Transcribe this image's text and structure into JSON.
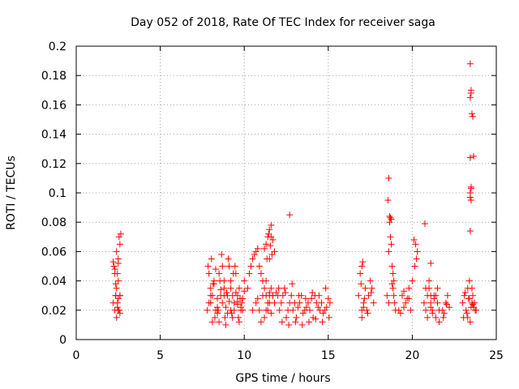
{
  "chart_data": {
    "type": "scatter",
    "title": "Day 052 of 2018, Rate Of TEC Index for receiver saga",
    "xlabel": "GPS time / hours",
    "ylabel": "ROTI / TECUs",
    "xlim": [
      0,
      25
    ],
    "ylim": [
      0,
      0.2
    ],
    "xticks": [
      "0",
      "5",
      "10",
      "15",
      "20",
      "25"
    ],
    "yticks": [
      "0",
      "0.02",
      "0.04",
      "0.06",
      "0.08",
      "0.1",
      "0.12",
      "0.14",
      "0.16",
      "0.18",
      "0.2"
    ],
    "grid": true,
    "marker": "+",
    "color": "#ff0000",
    "series": [
      {
        "name": "ROTI",
        "x": [
          2.2,
          2.25,
          2.3,
          2.3,
          2.35,
          2.4,
          2.4,
          2.45,
          2.5,
          2.5,
          2.55,
          2.6,
          2.6,
          2.65,
          2.3,
          2.4,
          2.5,
          2.35,
          2.45,
          2.55,
          2.5,
          2.6,
          2.2,
          2.35,
          2.45,
          2.5,
          2.6,
          7.8,
          7.9,
          8.0,
          8.1,
          8.2,
          8.3,
          8.4,
          8.5,
          8.6,
          8.7,
          8.8,
          8.9,
          9.0,
          9.1,
          9.2,
          9.3,
          9.4,
          9.5,
          9.6,
          9.7,
          9.8,
          9.9,
          10.0,
          7.85,
          8.05,
          8.25,
          8.45,
          8.65,
          8.85,
          9.05,
          9.25,
          9.45,
          9.65,
          9.85,
          8.0,
          8.2,
          8.4,
          8.6,
          8.8,
          9.0,
          9.2,
          9.4,
          9.6,
          9.8,
          10.0,
          8.1,
          8.5,
          8.9,
          9.3,
          9.7,
          7.9,
          8.3,
          8.7,
          9.1,
          9.5,
          9.9,
          8.15,
          8.55,
          8.95,
          9.35,
          9.75,
          8.0,
          8.4,
          8.8,
          9.2,
          9.6,
          10.2,
          10.3,
          10.4,
          10.5,
          10.6,
          10.7,
          10.8,
          10.9,
          11.0,
          11.1,
          11.2,
          11.3,
          11.4,
          11.5,
          11.6,
          11.7,
          11.8,
          11.9,
          10.5,
          10.7,
          10.9,
          11.1,
          11.3,
          11.5,
          11.7,
          11.2,
          11.4,
          11.6,
          11.0,
          10.8,
          11.3,
          11.5,
          11.3,
          11.4,
          11.5,
          11.6,
          11.7,
          11.8,
          11.2,
          11.5,
          11.6,
          11.45,
          11.55,
          11.35,
          11.65,
          12.0,
          12.2,
          12.4,
          12.6,
          12.8,
          13.0,
          13.2,
          13.4,
          13.6,
          13.8,
          14.0,
          14.2,
          14.4,
          14.6,
          14.8,
          15.0,
          12.1,
          12.3,
          12.5,
          12.7,
          12.9,
          13.1,
          13.3,
          13.5,
          13.7,
          13.9,
          14.1,
          14.3,
          14.5,
          14.7,
          14.9,
          15.1,
          12.05,
          12.45,
          12.85,
          13.25,
          13.65,
          14.05,
          14.45,
          14.85,
          12.25,
          12.65,
          13.05,
          13.45,
          13.85,
          14.25,
          14.65,
          15.05,
          12.7,
          16.8,
          16.9,
          17.0,
          17.0,
          17.1,
          17.2,
          17.3,
          17.4,
          17.5,
          17.6,
          17.7,
          16.95,
          17.05,
          17.15,
          17.35,
          17.55,
          17.0,
          17.1,
          18.5,
          18.55,
          18.6,
          18.6,
          18.65,
          18.7,
          18.75,
          18.8,
          18.85,
          18.9,
          18.95,
          19.0,
          18.6,
          18.7,
          18.8,
          18.9,
          18.65,
          18.85,
          18.75,
          19.2,
          19.4,
          19.6,
          19.8,
          20.0,
          19.3,
          19.5,
          19.7,
          19.9,
          19.5,
          19.8,
          20.1,
          20.2,
          20.3,
          20.25,
          20.15,
          20.7,
          20.8,
          20.9,
          21.0,
          21.1,
          21.2,
          21.3,
          21.4,
          21.5,
          21.6,
          20.8,
          21.0,
          21.2,
          21.4,
          21.6,
          20.9,
          21.1,
          21.3,
          21.5,
          21.1,
          21.8,
          22.0,
          22.2,
          21.9,
          22.1,
          21.85,
          22.05,
          23.0,
          23.1,
          23.2,
          23.3,
          23.4,
          23.5,
          23.6,
          23.7,
          23.8,
          23.05,
          23.25,
          23.45,
          23.65,
          23.15,
          23.35,
          23.55,
          23.75,
          23.3,
          23.6,
          23.45,
          23.5,
          23.5,
          23.45,
          23.55,
          23.6,
          23.65,
          23.45,
          23.5,
          23.45,
          23.45,
          23.5,
          23.5,
          23.45,
          23.55,
          23.4,
          20.75,
          21.1
        ],
        "y": [
          0.025,
          0.05,
          0.045,
          0.02,
          0.03,
          0.035,
          0.015,
          0.025,
          0.055,
          0.04,
          0.02,
          0.03,
          0.065,
          0.072,
          0.048,
          0.06,
          0.02,
          0.03,
          0.045,
          0.07,
          0.028,
          0.018,
          0.053,
          0.038,
          0.022,
          0.052,
          0.03,
          0.02,
          0.025,
          0.035,
          0.03,
          0.04,
          0.02,
          0.028,
          0.045,
          0.03,
          0.025,
          0.035,
          0.022,
          0.03,
          0.026,
          0.04,
          0.03,
          0.02,
          0.032,
          0.026,
          0.035,
          0.022,
          0.028,
          0.033,
          0.05,
          0.055,
          0.015,
          0.02,
          0.058,
          0.015,
          0.055,
          0.018,
          0.05,
          0.015,
          0.025,
          0.03,
          0.038,
          0.022,
          0.034,
          0.03,
          0.018,
          0.035,
          0.025,
          0.03,
          0.02,
          0.04,
          0.012,
          0.012,
          0.01,
          0.015,
          0.012,
          0.045,
          0.048,
          0.05,
          0.05,
          0.045,
          0.02,
          0.038,
          0.04,
          0.032,
          0.045,
          0.028,
          0.025,
          0.018,
          0.04,
          0.02,
          0.024,
          0.035,
          0.045,
          0.05,
          0.055,
          0.058,
          0.06,
          0.062,
          0.05,
          0.045,
          0.04,
          0.035,
          0.03,
          0.025,
          0.03,
          0.035,
          0.03,
          0.025,
          0.032,
          0.02,
          0.025,
          0.02,
          0.03,
          0.02,
          0.025,
          0.03,
          0.015,
          0.02,
          0.018,
          0.012,
          0.028,
          0.04,
          0.032,
          0.065,
          0.07,
          0.075,
          0.078,
          0.068,
          0.06,
          0.062,
          0.055,
          0.07,
          0.072,
          0.064,
          0.055,
          0.058,
          0.03,
          0.025,
          0.035,
          0.02,
          0.03,
          0.025,
          0.022,
          0.03,
          0.02,
          0.025,
          0.028,
          0.03,
          0.022,
          0.025,
          0.02,
          0.028,
          0.02,
          0.03,
          0.015,
          0.025,
          0.02,
          0.015,
          0.025,
          0.018,
          0.022,
          0.02,
          0.015,
          0.025,
          0.02,
          0.018,
          0.022,
          0.025,
          0.035,
          0.032,
          0.038,
          0.03,
          0.028,
          0.032,
          0.03,
          0.035,
          0.012,
          0.01,
          0.012,
          0.01,
          0.012,
          0.014,
          0.012,
          0.015,
          0.085,
          0.03,
          0.045,
          0.05,
          0.02,
          0.025,
          0.035,
          0.02,
          0.03,
          0.04,
          0.035,
          0.025,
          0.038,
          0.053,
          0.028,
          0.018,
          0.032,
          0.015,
          0.022,
          0.03,
          0.095,
          0.11,
          0.06,
          0.08,
          0.083,
          0.065,
          0.05,
          0.045,
          0.03,
          0.025,
          0.02,
          0.025,
          0.07,
          0.038,
          0.04,
          0.084,
          0.035,
          0.082,
          0.02,
          0.03,
          0.025,
          0.035,
          0.04,
          0.018,
          0.022,
          0.028,
          0.02,
          0.033,
          0.028,
          0.068,
          0.065,
          0.06,
          0.055,
          0.05,
          0.025,
          0.02,
          0.03,
          0.035,
          0.025,
          0.02,
          0.03,
          0.015,
          0.025,
          0.02,
          0.035,
          0.04,
          0.018,
          0.03,
          0.012,
          0.015,
          0.022,
          0.028,
          0.035,
          0.052,
          0.02,
          0.025,
          0.022,
          0.018,
          0.03,
          0.015,
          0.024,
          0.025,
          0.03,
          0.02,
          0.035,
          0.028,
          0.022,
          0.03,
          0.025,
          0.02,
          0.015,
          0.018,
          0.012,
          0.022,
          0.032,
          0.028,
          0.025,
          0.02,
          0.015,
          0.024,
          0.188,
          0.17,
          0.168,
          0.165,
          0.154,
          0.152,
          0.125,
          0.124,
          0.104,
          0.097,
          0.074,
          0.095,
          0.103,
          0.1,
          0.035,
          0.04,
          0.079,
          0.03
        ]
      }
    ]
  }
}
